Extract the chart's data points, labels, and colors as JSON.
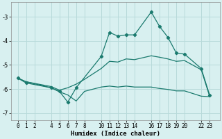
{
  "xlabel": "Humidex (Indice chaleur)",
  "bg_color": "#d8f0f0",
  "grid_color": "#b8dada",
  "line_color": "#1a7a6e",
  "xlim": [
    -0.8,
    24.2
  ],
  "ylim": [
    -7.3,
    -2.4
  ],
  "yticks": [
    -3,
    -4,
    -5,
    -6,
    -7
  ],
  "xticks": [
    0,
    1,
    2,
    4,
    5,
    6,
    7,
    8,
    10,
    11,
    12,
    13,
    14,
    16,
    17,
    18,
    19,
    20,
    22,
    23
  ],
  "line1_x": [
    0,
    1,
    4,
    5,
    6,
    7,
    10,
    11,
    12,
    13,
    14,
    16,
    17,
    18,
    19,
    20,
    22,
    23
  ],
  "line1_y": [
    -5.55,
    -5.75,
    -5.95,
    -6.1,
    -6.55,
    -5.95,
    -4.65,
    -3.65,
    -3.8,
    -3.75,
    -3.75,
    -2.8,
    -3.4,
    -3.85,
    -4.5,
    -4.55,
    -5.15,
    -6.25
  ],
  "line2_x": [
    0,
    1,
    4,
    5,
    6,
    7,
    8,
    10,
    11,
    12,
    13,
    14,
    16,
    17,
    18,
    19,
    20,
    22,
    23
  ],
  "line2_y": [
    -5.55,
    -5.7,
    -5.9,
    -6.05,
    -5.95,
    -5.8,
    -5.6,
    -5.15,
    -4.85,
    -4.88,
    -4.75,
    -4.78,
    -4.62,
    -4.68,
    -4.75,
    -4.85,
    -4.82,
    -5.2,
    -6.3
  ],
  "line3_x": [
    0,
    1,
    4,
    5,
    6,
    7,
    8,
    10,
    11,
    12,
    13,
    14,
    16,
    17,
    18,
    19,
    20,
    22,
    23
  ],
  "line3_y": [
    -5.55,
    -5.7,
    -5.95,
    -6.12,
    -6.25,
    -6.5,
    -6.1,
    -5.92,
    -5.88,
    -5.92,
    -5.88,
    -5.92,
    -5.92,
    -5.98,
    -6.02,
    -6.08,
    -6.08,
    -6.3,
    -6.32
  ]
}
